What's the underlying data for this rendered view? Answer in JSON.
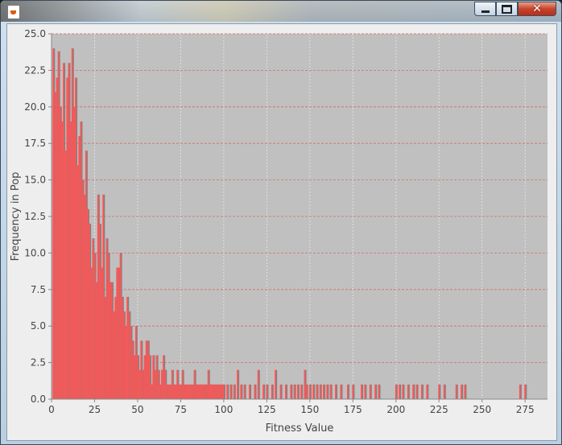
{
  "window": {
    "title": "",
    "icon": "java-cup-icon",
    "controls": {
      "minimize": "minimize-icon",
      "maximize": "maximize-icon",
      "close": "close-icon"
    }
  },
  "chart_data": {
    "type": "bar",
    "xlabel": "Fitness Value",
    "ylabel": "Frequency in Pop",
    "xlim": [
      0,
      288
    ],
    "ylim": [
      0,
      25
    ],
    "x_ticks": [
      0,
      25,
      50,
      75,
      100,
      125,
      150,
      175,
      200,
      225,
      250,
      275
    ],
    "y_ticks": [
      "0.0",
      "2.5",
      "5.0",
      "7.5",
      "10.0",
      "12.5",
      "15.0",
      "17.5",
      "20.0",
      "22.5",
      "25.0"
    ],
    "grid": true,
    "legend": "none",
    "colors": {
      "plot_bg": "#c0c0c0",
      "bar": "#ff5555",
      "bar_shadow": "#808080",
      "grid_h": "#d66a6a",
      "grid_v": "#e8e8e8"
    },
    "series": [
      {
        "x": [
          1,
          2,
          3,
          4,
          5,
          6,
          7,
          8,
          9,
          10,
          11,
          12,
          13,
          14,
          15,
          16,
          17,
          18,
          19,
          20,
          21,
          22,
          23,
          24,
          25,
          26,
          27,
          28,
          29,
          30,
          31,
          32,
          33,
          34,
          35,
          36,
          37,
          38,
          39,
          40,
          41,
          42,
          43,
          44,
          45,
          46,
          47,
          48,
          49,
          50,
          51,
          52,
          53,
          54,
          55,
          56,
          57,
          58,
          59,
          60,
          61,
          62,
          63,
          64,
          65,
          66,
          67,
          68,
          69,
          70,
          71,
          72,
          73,
          74,
          75,
          76,
          77,
          78,
          79,
          80,
          81,
          82,
          83,
          84,
          85,
          86,
          87,
          88,
          89,
          90,
          91,
          92,
          93,
          94,
          95,
          96,
          97,
          98,
          99,
          100,
          102,
          104,
          106,
          108,
          110,
          112,
          115,
          118,
          120,
          123,
          125,
          128,
          130,
          133,
          136,
          139,
          141,
          143,
          145,
          147,
          148,
          150,
          152,
          154,
          156,
          158,
          160,
          162,
          165,
          168,
          172,
          175,
          180,
          182,
          185,
          188,
          190,
          200,
          202,
          204,
          207,
          210,
          212,
          215,
          218,
          225,
          228,
          235,
          238,
          240,
          272,
          275
        ],
        "values": [
          24,
          21,
          22,
          23.8,
          20,
          19,
          23,
          17,
          22,
          23,
          19,
          24,
          20,
          22,
          16,
          18,
          19,
          15,
          14,
          17,
          13,
          12,
          9,
          11,
          10,
          8,
          14,
          12,
          9,
          14,
          7,
          11,
          10,
          8,
          8,
          6,
          7,
          9,
          9,
          10,
          7,
          6,
          5,
          7,
          6,
          5,
          4,
          3,
          5,
          3,
          2,
          4,
          2,
          3,
          4,
          4,
          3,
          1,
          3,
          2,
          3,
          2,
          1,
          2,
          3,
          2,
          1,
          1,
          1,
          2,
          1,
          1,
          2,
          1,
          1,
          2,
          1,
          1,
          1,
          1,
          1,
          1,
          2,
          1,
          1,
          1,
          1,
          1,
          1,
          1,
          2,
          1,
          1,
          1,
          1,
          1,
          1,
          1,
          1,
          1,
          1,
          1,
          1,
          2,
          1,
          1,
          1,
          1,
          2,
          1,
          1,
          1,
          2,
          1,
          1,
          1,
          1,
          1,
          1,
          2,
          1,
          1,
          1,
          1,
          1,
          1,
          1,
          1,
          1,
          1,
          1,
          1,
          1,
          1,
          1,
          1,
          1,
          1,
          1,
          1,
          1,
          1,
          1,
          1,
          1,
          1,
          1,
          1,
          1,
          1,
          1,
          1
        ]
      }
    ]
  }
}
